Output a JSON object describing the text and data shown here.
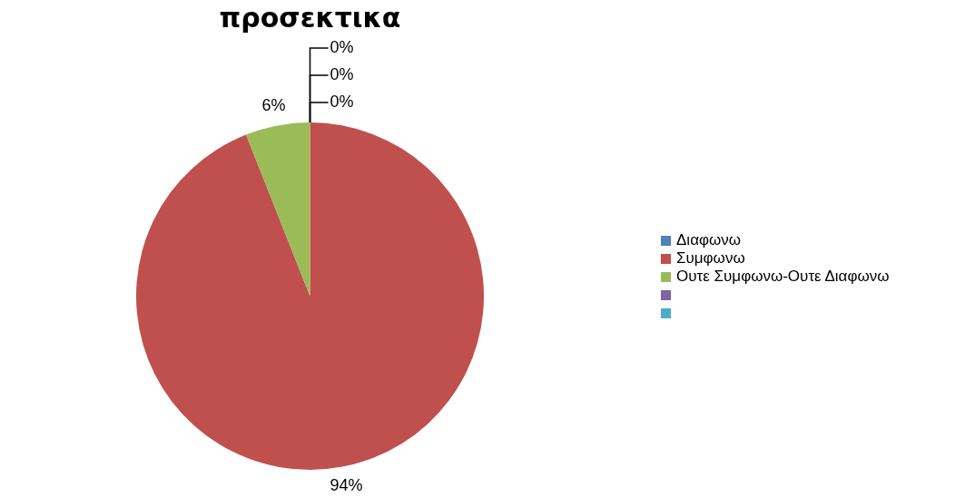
{
  "chart_data": {
    "type": "pie",
    "title": "προσεκτικα",
    "categories": [
      "Διαφωνω",
      "Συμφωνω",
      "Ουτε Συμφωνω-Ουτε Διαφωνω",
      null,
      null
    ],
    "values": [
      0,
      94,
      6,
      0,
      0
    ],
    "colors": [
      "#4f81bd",
      "#c0504d",
      "#9bbb59",
      "#8064a2",
      "#4bacc6"
    ],
    "value_labels": [
      "0%",
      "94%",
      "6%",
      "0%",
      "0%"
    ],
    "legend": "right"
  }
}
